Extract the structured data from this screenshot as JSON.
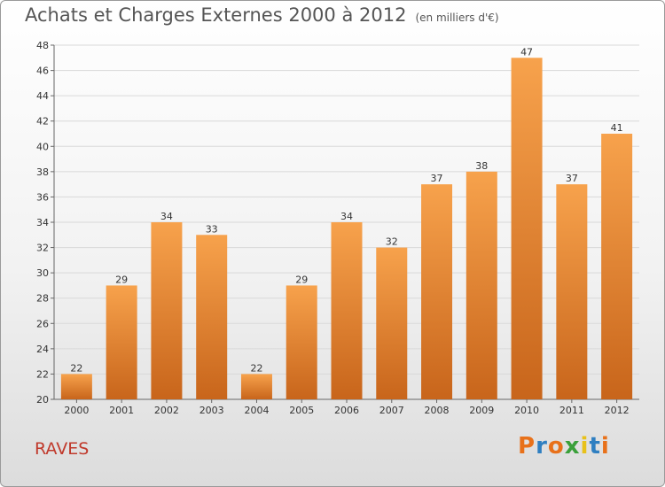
{
  "header": {
    "title": "Achats et Charges Externes 2000 à 2012",
    "subtitle": "(en milliers d'€)"
  },
  "footer": {
    "commune": "RAVES",
    "logo_text": "Proxiti",
    "logo_colors": [
      "#e8711a",
      "#2f7fc1",
      "#e8711a",
      "#3aa03a",
      "#e8c11a",
      "#2f7fc1",
      "#e8711a"
    ]
  },
  "colors": {
    "bar_top": "#f7a24c",
    "bar_bottom": "#c8651b",
    "grid": "#d9d9d9",
    "axis": "#666666"
  },
  "chart_data": {
    "type": "bar",
    "title": "Achats et Charges Externes 2000 à 2012",
    "subtitle": "(en milliers d'€)",
    "categories": [
      "2000",
      "2001",
      "2002",
      "2003",
      "2004",
      "2005",
      "2006",
      "2007",
      "2008",
      "2009",
      "2010",
      "2011",
      "2012"
    ],
    "values": [
      22,
      29,
      34,
      33,
      22,
      29,
      34,
      32,
      37,
      38,
      47,
      37,
      41
    ],
    "ylim": [
      20,
      48
    ],
    "yticks": [
      20,
      22,
      24,
      26,
      28,
      30,
      32,
      34,
      36,
      38,
      40,
      42,
      44,
      46,
      48
    ],
    "grid": true
  }
}
